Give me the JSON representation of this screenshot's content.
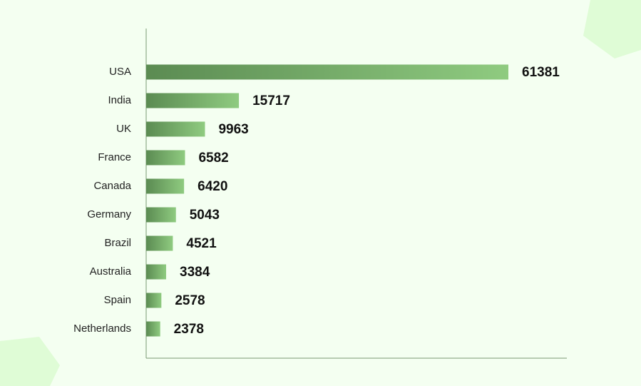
{
  "chart_data": {
    "type": "hbar",
    "categories": [
      "USA",
      "India",
      "UK",
      "France",
      "Canada",
      "Germany",
      "Brazil",
      "Australia",
      "Spain",
      "Netherlands"
    ],
    "values": [
      61381,
      15717,
      9963,
      6582,
      6420,
      5043,
      4521,
      3384,
      2578,
      2378
    ],
    "color": [
      "#5b8b52",
      "#8fcb80"
    ]
  }
}
